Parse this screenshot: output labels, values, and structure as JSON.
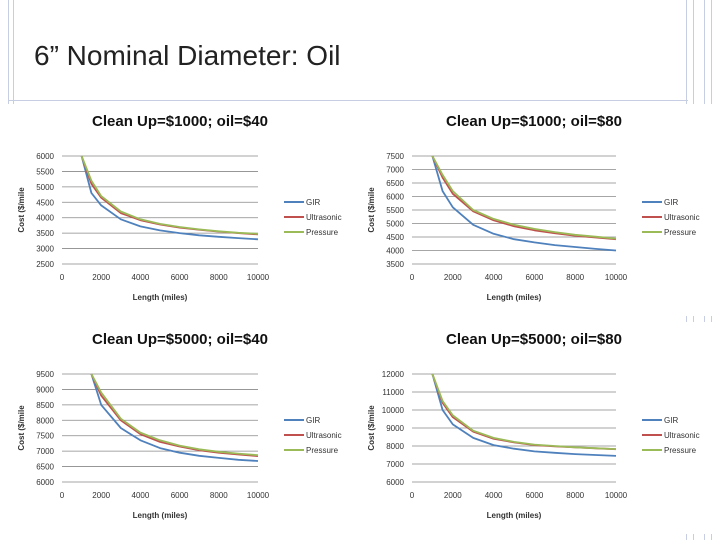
{
  "slide": {
    "title": "6” Nominal Diameter: Oil"
  },
  "colors": {
    "GIR": "#4f81bd",
    "Ultrasonic": "#c0504d",
    "Pressure": "#9bbb59"
  },
  "chart_data": [
    {
      "type": "line",
      "title": "Clean Up=$1000; oil=$40",
      "xlabel": "Length (miles)",
      "ylabel": "Cost ($/mile",
      "xlim": [
        0,
        10000
      ],
      "ylim": [
        2500,
        6000
      ],
      "xticks": [
        "0",
        "2000",
        "4000",
        "6000",
        "8000",
        "10000"
      ],
      "yticks": [
        "2500",
        "3000",
        "3500",
        "4000",
        "4500",
        "5000",
        "5500",
        "6000"
      ],
      "legend_position": "right",
      "x": [
        1000,
        1500,
        2000,
        3000,
        4000,
        5000,
        6000,
        7000,
        8000,
        9000,
        10000
      ],
      "series": [
        {
          "name": "GIR",
          "values": [
            6000,
            4800,
            4400,
            3950,
            3720,
            3590,
            3500,
            3430,
            3380,
            3340,
            3300
          ]
        },
        {
          "name": "Ultrasonic",
          "values": [
            6000,
            5100,
            4650,
            4150,
            3920,
            3780,
            3680,
            3610,
            3550,
            3500,
            3460
          ]
        },
        {
          "name": "Pressure",
          "values": [
            6000,
            5200,
            4700,
            4200,
            3950,
            3800,
            3700,
            3620,
            3560,
            3510,
            3480
          ]
        }
      ]
    },
    {
      "type": "line",
      "title": "Clean Up=$1000; oil=$80",
      "xlabel": "Length (miles)",
      "ylabel": "Cost ($/mile",
      "xlim": [
        0,
        10000
      ],
      "ylim": [
        3500,
        7500
      ],
      "xticks": [
        "0",
        "2000",
        "4000",
        "6000",
        "8000",
        "10000"
      ],
      "yticks": [
        "3500",
        "4000",
        "4500",
        "5000",
        "5500",
        "6000",
        "6500",
        "7000",
        "7500"
      ],
      "legend_position": "right",
      "x": [
        1000,
        1500,
        2000,
        3000,
        4000,
        5000,
        6000,
        7000,
        8000,
        9000,
        10000
      ],
      "series": [
        {
          "name": "GIR",
          "values": [
            7500,
            6200,
            5600,
            4950,
            4620,
            4420,
            4300,
            4200,
            4130,
            4060,
            4000
          ]
        },
        {
          "name": "Ultrasonic",
          "values": [
            7500,
            6700,
            6100,
            5450,
            5120,
            4900,
            4750,
            4640,
            4550,
            4480,
            4420
          ]
        },
        {
          "name": "Pressure",
          "values": [
            7500,
            6800,
            6200,
            5500,
            5170,
            4950,
            4800,
            4680,
            4580,
            4510,
            4440
          ]
        }
      ]
    },
    {
      "type": "line",
      "title": "Clean Up=$5000; oil=$40",
      "xlabel": "Length (miles)",
      "ylabel": "Cost ($/mile",
      "xlim": [
        0,
        10000
      ],
      "ylim": [
        6000,
        9500
      ],
      "xticks": [
        "0",
        "2000",
        "4000",
        "6000",
        "8000",
        "10000"
      ],
      "yticks": [
        "6000",
        "6500",
        "7000",
        "7500",
        "8000",
        "8500",
        "9000",
        "9500"
      ],
      "legend_position": "right",
      "x": [
        1500,
        2000,
        3000,
        4000,
        5000,
        6000,
        7000,
        8000,
        9000,
        10000
      ],
      "series": [
        {
          "name": "GIR",
          "values": [
            9500,
            8500,
            7750,
            7350,
            7100,
            6950,
            6850,
            6780,
            6720,
            6680
          ]
        },
        {
          "name": "Ultrasonic",
          "values": [
            9500,
            8800,
            8000,
            7550,
            7300,
            7150,
            7030,
            6950,
            6890,
            6840
          ]
        },
        {
          "name": "Pressure",
          "values": [
            9500,
            8900,
            8050,
            7600,
            7350,
            7180,
            7060,
            6980,
            6920,
            6870
          ]
        }
      ]
    },
    {
      "type": "line",
      "title": "Clean Up=$5000; oil=$80",
      "xlabel": "Length (miles)",
      "ylabel": "Cost ($/mile",
      "xlim": [
        0,
        10000
      ],
      "ylim": [
        6000,
        12000
      ],
      "xticks": [
        "0",
        "2000",
        "4000",
        "6000",
        "8000",
        "10000"
      ],
      "yticks": [
        "6000",
        "7000",
        "8000",
        "9000",
        "10000",
        "11000",
        "12000"
      ],
      "legend_position": "right",
      "x": [
        1000,
        1500,
        2000,
        3000,
        4000,
        5000,
        6000,
        7000,
        8000,
        9000,
        10000
      ],
      "series": [
        {
          "name": "GIR",
          "values": [
            12000,
            10000,
            9200,
            8450,
            8050,
            7850,
            7700,
            7620,
            7550,
            7500,
            7450
          ]
        },
        {
          "name": "Ultrasonic",
          "values": [
            12000,
            10400,
            9600,
            8800,
            8400,
            8200,
            8050,
            7980,
            7920,
            7870,
            7820
          ]
        },
        {
          "name": "Pressure",
          "values": [
            12000,
            10500,
            9700,
            8850,
            8450,
            8230,
            8080,
            8000,
            7930,
            7880,
            7830
          ]
        }
      ]
    }
  ]
}
